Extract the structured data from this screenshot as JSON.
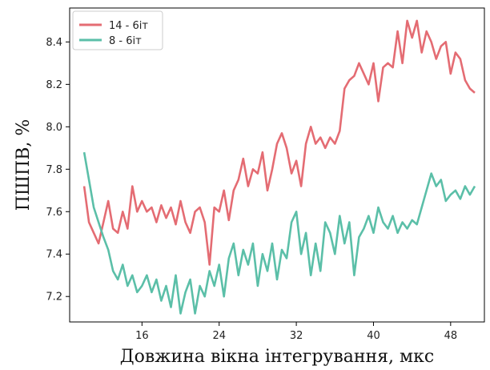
{
  "chart_data": {
    "type": "line",
    "xlabel": "Довжина вікна інтегрування, мкс",
    "ylabel": "ПШПВ, %",
    "xlim": [
      8.5,
      51.5
    ],
    "ylim": [
      7.08,
      8.56
    ],
    "xticks": [
      16,
      24,
      32,
      40,
      48
    ],
    "xtick_labels": [
      "16",
      "24",
      "32",
      "40",
      "48"
    ],
    "yticks": [
      7.2,
      7.4,
      7.6,
      7.8,
      8.0,
      8.2,
      8.4
    ],
    "ytick_labels": [
      "7.2",
      "7.4",
      "7.6",
      "7.8",
      "8.0",
      "8.2",
      "8.4"
    ],
    "grid": false,
    "legend_position": "top-left",
    "series": [
      {
        "name": "14 - 6іт",
        "color": "#e46c73",
        "x": [
          10.0,
          10.5,
          11.0,
          11.5,
          12.0,
          12.5,
          13.0,
          13.5,
          14.0,
          14.5,
          15.0,
          15.5,
          16.0,
          16.5,
          17.0,
          17.5,
          18.0,
          18.5,
          19.0,
          19.5,
          20.0,
          20.5,
          21.0,
          21.5,
          22.0,
          22.5,
          23.0,
          23.5,
          24.0,
          24.5,
          25.0,
          25.5,
          26.0,
          26.5,
          27.0,
          27.5,
          28.0,
          28.5,
          29.0,
          29.5,
          30.0,
          30.5,
          31.0,
          31.5,
          32.0,
          32.5,
          33.0,
          33.5,
          34.0,
          34.5,
          35.0,
          35.5,
          36.0,
          36.5,
          37.0,
          37.5,
          38.0,
          38.5,
          39.0,
          39.5,
          40.0,
          40.5,
          41.0,
          41.5,
          42.0,
          42.5,
          43.0,
          43.5,
          44.0,
          44.5,
          45.0,
          45.5,
          46.0,
          46.5,
          47.0,
          47.5,
          48.0,
          48.5,
          49.0,
          49.5,
          50.0,
          50.5
        ],
        "values": [
          7.72,
          7.55,
          7.5,
          7.45,
          7.55,
          7.65,
          7.52,
          7.5,
          7.6,
          7.52,
          7.72,
          7.6,
          7.65,
          7.6,
          7.62,
          7.55,
          7.63,
          7.57,
          7.62,
          7.54,
          7.65,
          7.55,
          7.5,
          7.6,
          7.62,
          7.55,
          7.35,
          7.62,
          7.6,
          7.7,
          7.56,
          7.7,
          7.75,
          7.85,
          7.72,
          7.8,
          7.78,
          7.88,
          7.7,
          7.8,
          7.92,
          7.97,
          7.9,
          7.78,
          7.84,
          7.72,
          7.92,
          8.0,
          7.92,
          7.95,
          7.9,
          7.95,
          7.92,
          7.98,
          8.18,
          8.22,
          8.24,
          8.3,
          8.25,
          8.2,
          8.3,
          8.12,
          8.28,
          8.3,
          8.28,
          8.45,
          8.3,
          8.5,
          8.42,
          8.5,
          8.35,
          8.45,
          8.4,
          8.32,
          8.38,
          8.4,
          8.25,
          8.35,
          8.32,
          8.22,
          8.18,
          8.16
        ],
        "values_note": ""
      },
      {
        "name": "8 - 6іт",
        "color": "#5bbfa8",
        "x": [
          10.0,
          10.5,
          11.0,
          11.5,
          12.0,
          12.5,
          13.0,
          13.5,
          14.0,
          14.5,
          15.0,
          15.5,
          16.0,
          16.5,
          17.0,
          17.5,
          18.0,
          18.5,
          19.0,
          19.5,
          20.0,
          20.5,
          21.0,
          21.5,
          22.0,
          22.5,
          23.0,
          23.5,
          24.0,
          24.5,
          25.0,
          25.5,
          26.0,
          26.5,
          27.0,
          27.5,
          28.0,
          28.5,
          29.0,
          29.5,
          30.0,
          30.5,
          31.0,
          31.5,
          32.0,
          32.5,
          33.0,
          33.5,
          34.0,
          34.5,
          35.0,
          35.5,
          36.0,
          36.5,
          37.0,
          37.5,
          38.0,
          38.5,
          39.0,
          39.5,
          40.0,
          40.5,
          41.0,
          41.5,
          42.0,
          42.5,
          43.0,
          43.5,
          44.0,
          44.5,
          45.0,
          45.5,
          46.0,
          46.5,
          47.0,
          47.5,
          48.0,
          48.5,
          49.0,
          49.5,
          50.0,
          50.5
        ],
        "values": [
          7.88,
          7.75,
          7.62,
          7.55,
          7.48,
          7.42,
          7.32,
          7.28,
          7.35,
          7.25,
          7.3,
          7.22,
          7.25,
          7.3,
          7.22,
          7.28,
          7.18,
          7.25,
          7.15,
          7.3,
          7.12,
          7.22,
          7.28,
          7.12,
          7.25,
          7.2,
          7.32,
          7.25,
          7.35,
          7.2,
          7.38,
          7.45,
          7.3,
          7.42,
          7.35,
          7.45,
          7.25,
          7.4,
          7.32,
          7.45,
          7.28,
          7.42,
          7.38,
          7.55,
          7.6,
          7.4,
          7.5,
          7.3,
          7.45,
          7.32,
          7.55,
          7.5,
          7.4,
          7.58,
          7.45,
          7.55,
          7.3,
          7.48,
          7.52,
          7.58,
          7.5,
          7.62,
          7.55,
          7.52,
          7.58,
          7.5,
          7.55,
          7.52,
          7.56,
          7.54,
          7.62,
          7.7,
          7.78,
          7.72,
          7.75,
          7.65,
          7.68,
          7.7,
          7.66,
          7.72,
          7.68,
          7.72
        ]
      }
    ]
  }
}
